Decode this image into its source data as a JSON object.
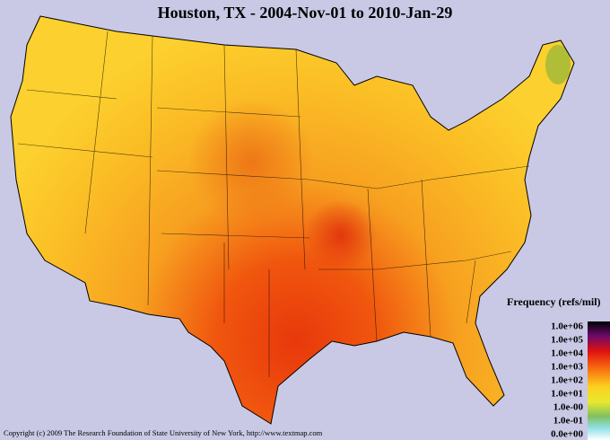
{
  "title": "Houston, TX - 2004-Nov-01 to 2010-Jan-29",
  "legend": {
    "title": "Frequency (refs/mil)",
    "labels": [
      "1.0e+06",
      "1.0e+05",
      "1.0e+04",
      "1.0e+03",
      "1.0e+02",
      "1.0e+01",
      "1.0e-00",
      "1.0e-01",
      "0.0e+00"
    ]
  },
  "copyright": "Copyright (c) 2009 The Research Foundation of State University of New York, http://www.textmap.com"
}
